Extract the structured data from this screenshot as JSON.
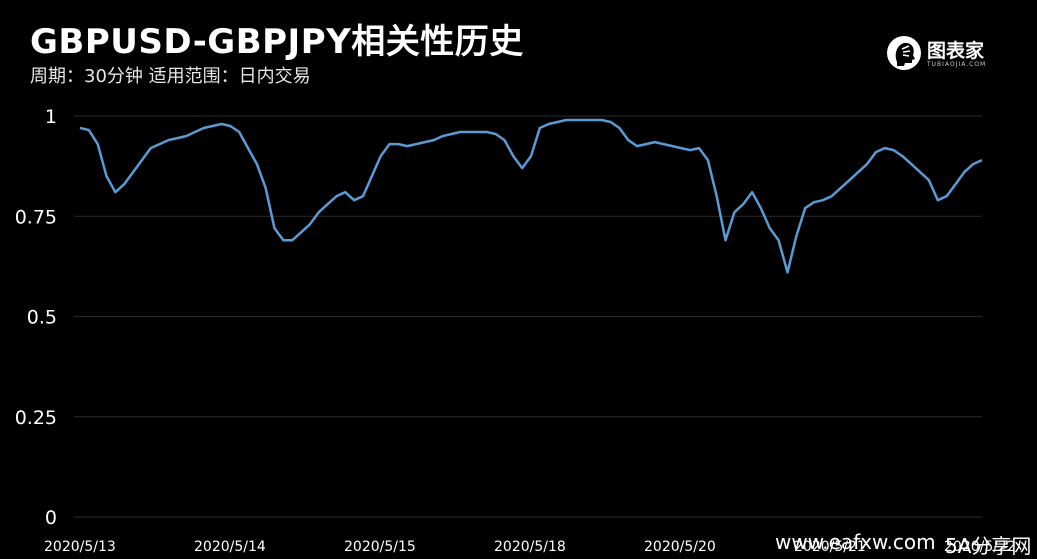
{
  "header": {
    "title": "GBPUSD-GBPJPY相关性历史",
    "subtitle": "周期：30分钟  适用范围：日内交易"
  },
  "logo": {
    "text": "图表家",
    "sub": "TUBIAOJIA.COM",
    "icon": "head-profile-icon"
  },
  "watermark": {
    "left": "www.eafxw.com",
    "right": "5A分享网"
  },
  "colors": {
    "background": "#000000",
    "line": "#5b9bd5",
    "grid": "#2a2a2a",
    "text": "#ffffff"
  },
  "chart_data": {
    "type": "line",
    "title": "GBPUSD-GBPJPY相关性历史",
    "xlabel": "",
    "ylabel": "",
    "ylim": [
      0,
      1
    ],
    "yticks": [
      "0",
      "0.25",
      "0.5",
      "0.75",
      "1"
    ],
    "ytick_values": [
      0,
      0.25,
      0.5,
      0.75,
      1
    ],
    "xticks": [
      "2020/5/13",
      "2020/5/14",
      "2020/5/15",
      "2020/5/18",
      "2020/5/20",
      "2020/5/21",
      "2020/5/22"
    ],
    "xtick_index": [
      0,
      1,
      2,
      3,
      4,
      5,
      6
    ],
    "grid": true,
    "legend": "none",
    "series": [
      {
        "values": [
          0.97,
          0.965,
          0.93,
          0.85,
          0.81,
          0.83,
          0.86,
          0.89,
          0.92,
          0.93,
          0.94,
          0.945,
          0.95,
          0.96,
          0.97,
          0.975,
          0.98,
          0.975,
          0.96,
          0.92,
          0.88,
          0.82,
          0.72,
          0.69,
          0.69,
          0.71,
          0.73,
          0.76,
          0.78,
          0.8,
          0.81,
          0.79,
          0.8,
          0.85,
          0.9,
          0.93,
          0.93,
          0.925,
          0.93,
          0.935,
          0.94,
          0.95,
          0.955,
          0.96,
          0.96,
          0.96,
          0.96,
          0.955,
          0.94,
          0.9,
          0.87,
          0.9,
          0.97,
          0.98,
          0.985,
          0.99,
          0.99,
          0.99,
          0.99,
          0.99,
          0.985,
          0.97,
          0.94,
          0.925,
          0.93,
          0.935,
          0.93,
          0.925,
          0.92,
          0.915,
          0.92,
          0.89,
          0.8,
          0.69,
          0.76,
          0.78,
          0.81,
          0.77,
          0.72,
          0.69,
          0.61,
          0.7,
          0.77,
          0.785,
          0.79,
          0.8,
          0.82,
          0.84,
          0.86,
          0.88,
          0.91,
          0.92,
          0.915,
          0.9,
          0.88,
          0.86,
          0.84,
          0.79,
          0.8,
          0.83,
          0.86,
          0.88,
          0.89
        ]
      }
    ]
  }
}
